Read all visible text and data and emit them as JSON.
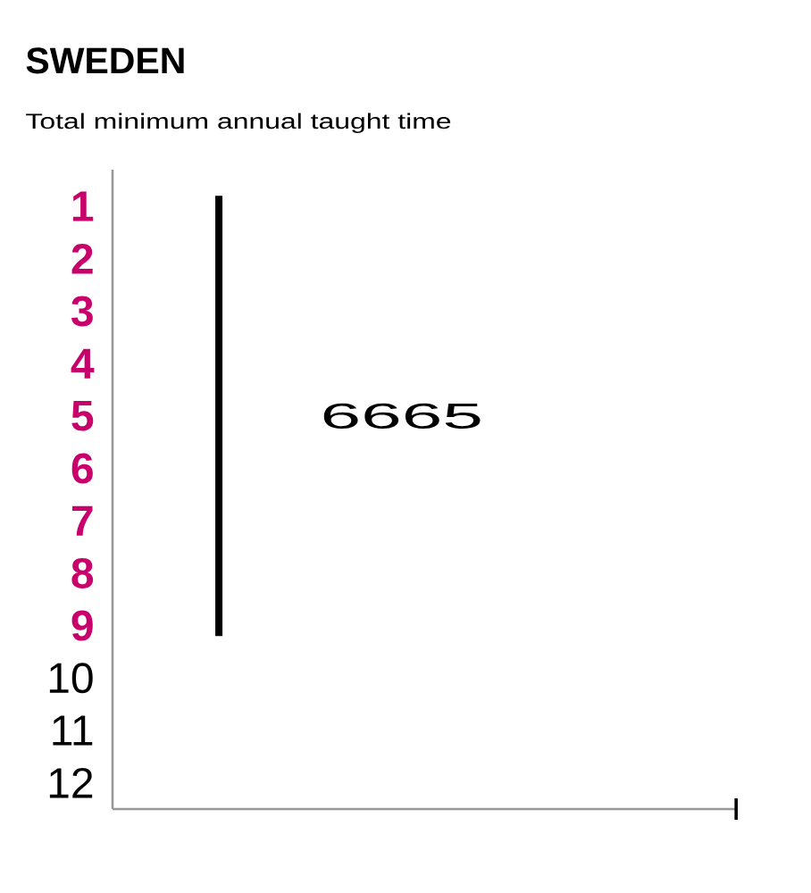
{
  "chart_data": {
    "type": "bar",
    "title": "SWEDEN",
    "subtitle": "Total minimum annual taught time",
    "categories": [
      null
    ],
    "values": [
      8.4
    ],
    "base": [
      0.8
    ],
    "color": "#000000",
    "ylim": [
      12.5,
      0.3
    ],
    "yticks": [
      1,
      2,
      3,
      4,
      5,
      6,
      7,
      8,
      9,
      10,
      11,
      12
    ],
    "tick_labels": "y",
    "annotations": [
      "6665"
    ]
  }
}
